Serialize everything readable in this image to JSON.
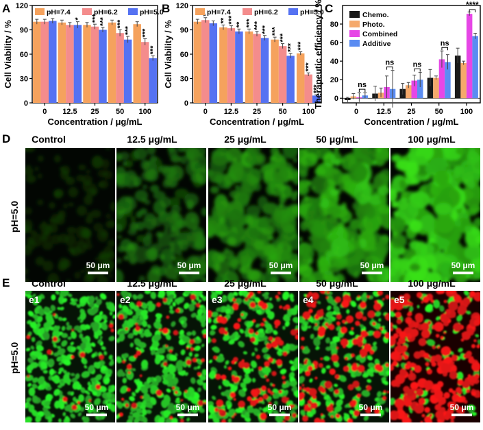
{
  "colors": {
    "orange": "#F5A25D",
    "pink": "#F48C8C",
    "blue": "#5572F2",
    "black": "#1a1a1a",
    "tan": "#F5A96B",
    "magenta": "#E646E6",
    "lightblue": "#5A8CF2",
    "green": "#2ecc40",
    "red": "#e8261e"
  },
  "chart_data": [
    {
      "panel": "A",
      "type": "bar",
      "categories": [
        "0",
        "12.5",
        "25",
        "50",
        "100"
      ],
      "xlabel": "Concentration / μg/mL",
      "ylabel": "Cell Viability / %",
      "ylim": [
        0,
        120
      ],
      "yticks": [
        0,
        30,
        60,
        90,
        120
      ],
      "legend": "top",
      "series": [
        {
          "name": "pH=7.4",
          "values": [
            100,
            99,
            96,
            99,
            97
          ],
          "errors": [
            3,
            3,
            3,
            3,
            3
          ],
          "sig": [
            "",
            "",
            "",
            "",
            ""
          ]
        },
        {
          "name": "pH=6.2",
          "values": [
            100,
            96,
            94,
            86,
            75
          ],
          "errors": [
            3,
            3,
            3,
            4,
            4
          ],
          "sig": [
            "",
            "",
            "***",
            "***",
            "***"
          ]
        },
        {
          "name": "pH=5.0",
          "values": [
            101,
            96,
            90,
            78,
            55
          ],
          "errors": [
            3,
            4,
            3,
            4,
            3
          ],
          "sig": [
            "",
            "*",
            "***",
            "***",
            "***"
          ]
        }
      ]
    },
    {
      "panel": "B",
      "type": "bar",
      "categories": [
        "0",
        "12.5",
        "25",
        "50",
        "100"
      ],
      "xlabel": "Concentration / μg/mL",
      "ylabel": "Cell Viability / %",
      "ylim": [
        0,
        120
      ],
      "yticks": [
        0,
        30,
        60,
        90,
        120
      ],
      "legend": "top",
      "series": [
        {
          "name": "pH=7.4",
          "values": [
            100,
            93,
            88,
            78,
            61
          ],
          "errors": [
            3,
            3,
            3,
            3,
            2
          ],
          "sig": [
            "",
            "**",
            "***",
            "***",
            "***"
          ]
        },
        {
          "name": "pH=6.2",
          "values": [
            102,
            92,
            85,
            70,
            35
          ],
          "errors": [
            3,
            3,
            3,
            3,
            2
          ],
          "sig": [
            "*",
            "***",
            "***",
            "***",
            "***"
          ]
        },
        {
          "name": "pH=5.0",
          "values": [
            98,
            88,
            80,
            58,
            9
          ],
          "errors": [
            3,
            3,
            3,
            3,
            1
          ],
          "sig": [
            "",
            "**",
            "***",
            "***",
            "***"
          ]
        }
      ]
    },
    {
      "panel": "C",
      "type": "bar",
      "categories": [
        "0",
        "12.5",
        "25",
        "50",
        "100"
      ],
      "xlabel": "Concentration / μg/mL",
      "ylabel": "Therapeutic efficiency / %",
      "ylim": [
        -5,
        100
      ],
      "yticks": [
        0,
        20,
        40,
        60,
        80
      ],
      "legend": "top-left",
      "series": [
        {
          "name": "Chemo.",
          "values": [
            -2,
            5,
            10,
            22,
            46
          ],
          "errors": [
            3,
            8,
            6,
            9,
            8
          ]
        },
        {
          "name": "Photo.",
          "values": [
            2,
            6,
            14,
            22,
            38
          ],
          "errors": [
            3,
            5,
            3,
            2,
            2
          ]
        },
        {
          "name": "Combined",
          "values": [
            1,
            12,
            19,
            42,
            91
          ],
          "errors": [
            5,
            12,
            6,
            9,
            2
          ]
        },
        {
          "name": "Additive",
          "values": [
            3,
            10,
            20,
            39,
            67
          ],
          "errors": [
            3,
            20,
            8,
            8,
            3
          ]
        }
      ],
      "annotations": [
        "ns",
        "ns",
        "ns",
        "ns",
        "****"
      ]
    }
  ],
  "panel_labels": {
    "a": "A",
    "b": "B",
    "c": "C",
    "d": "D",
    "e": "E"
  },
  "row_d": {
    "label": "pH=5.0",
    "headers": [
      "Control",
      "12.5 μg/mL",
      "25 μg/mL",
      "50 μg/mL",
      "100 μg/mL"
    ],
    "scalebar": "50 μm",
    "brightness": [
      0.18,
      0.5,
      0.65,
      0.8,
      0.95
    ]
  },
  "row_e": {
    "label": "pH=5.0",
    "headers": [
      "Control",
      "12.5 μg/mL",
      "25 μg/mL",
      "50 μg/mL",
      "100 μg/mL"
    ],
    "sublabels": [
      "e1",
      "e2",
      "e3",
      "e4",
      "e5"
    ],
    "scalebar": "50 μm",
    "red_fraction": [
      0.03,
      0.15,
      0.35,
      0.5,
      0.9
    ]
  }
}
